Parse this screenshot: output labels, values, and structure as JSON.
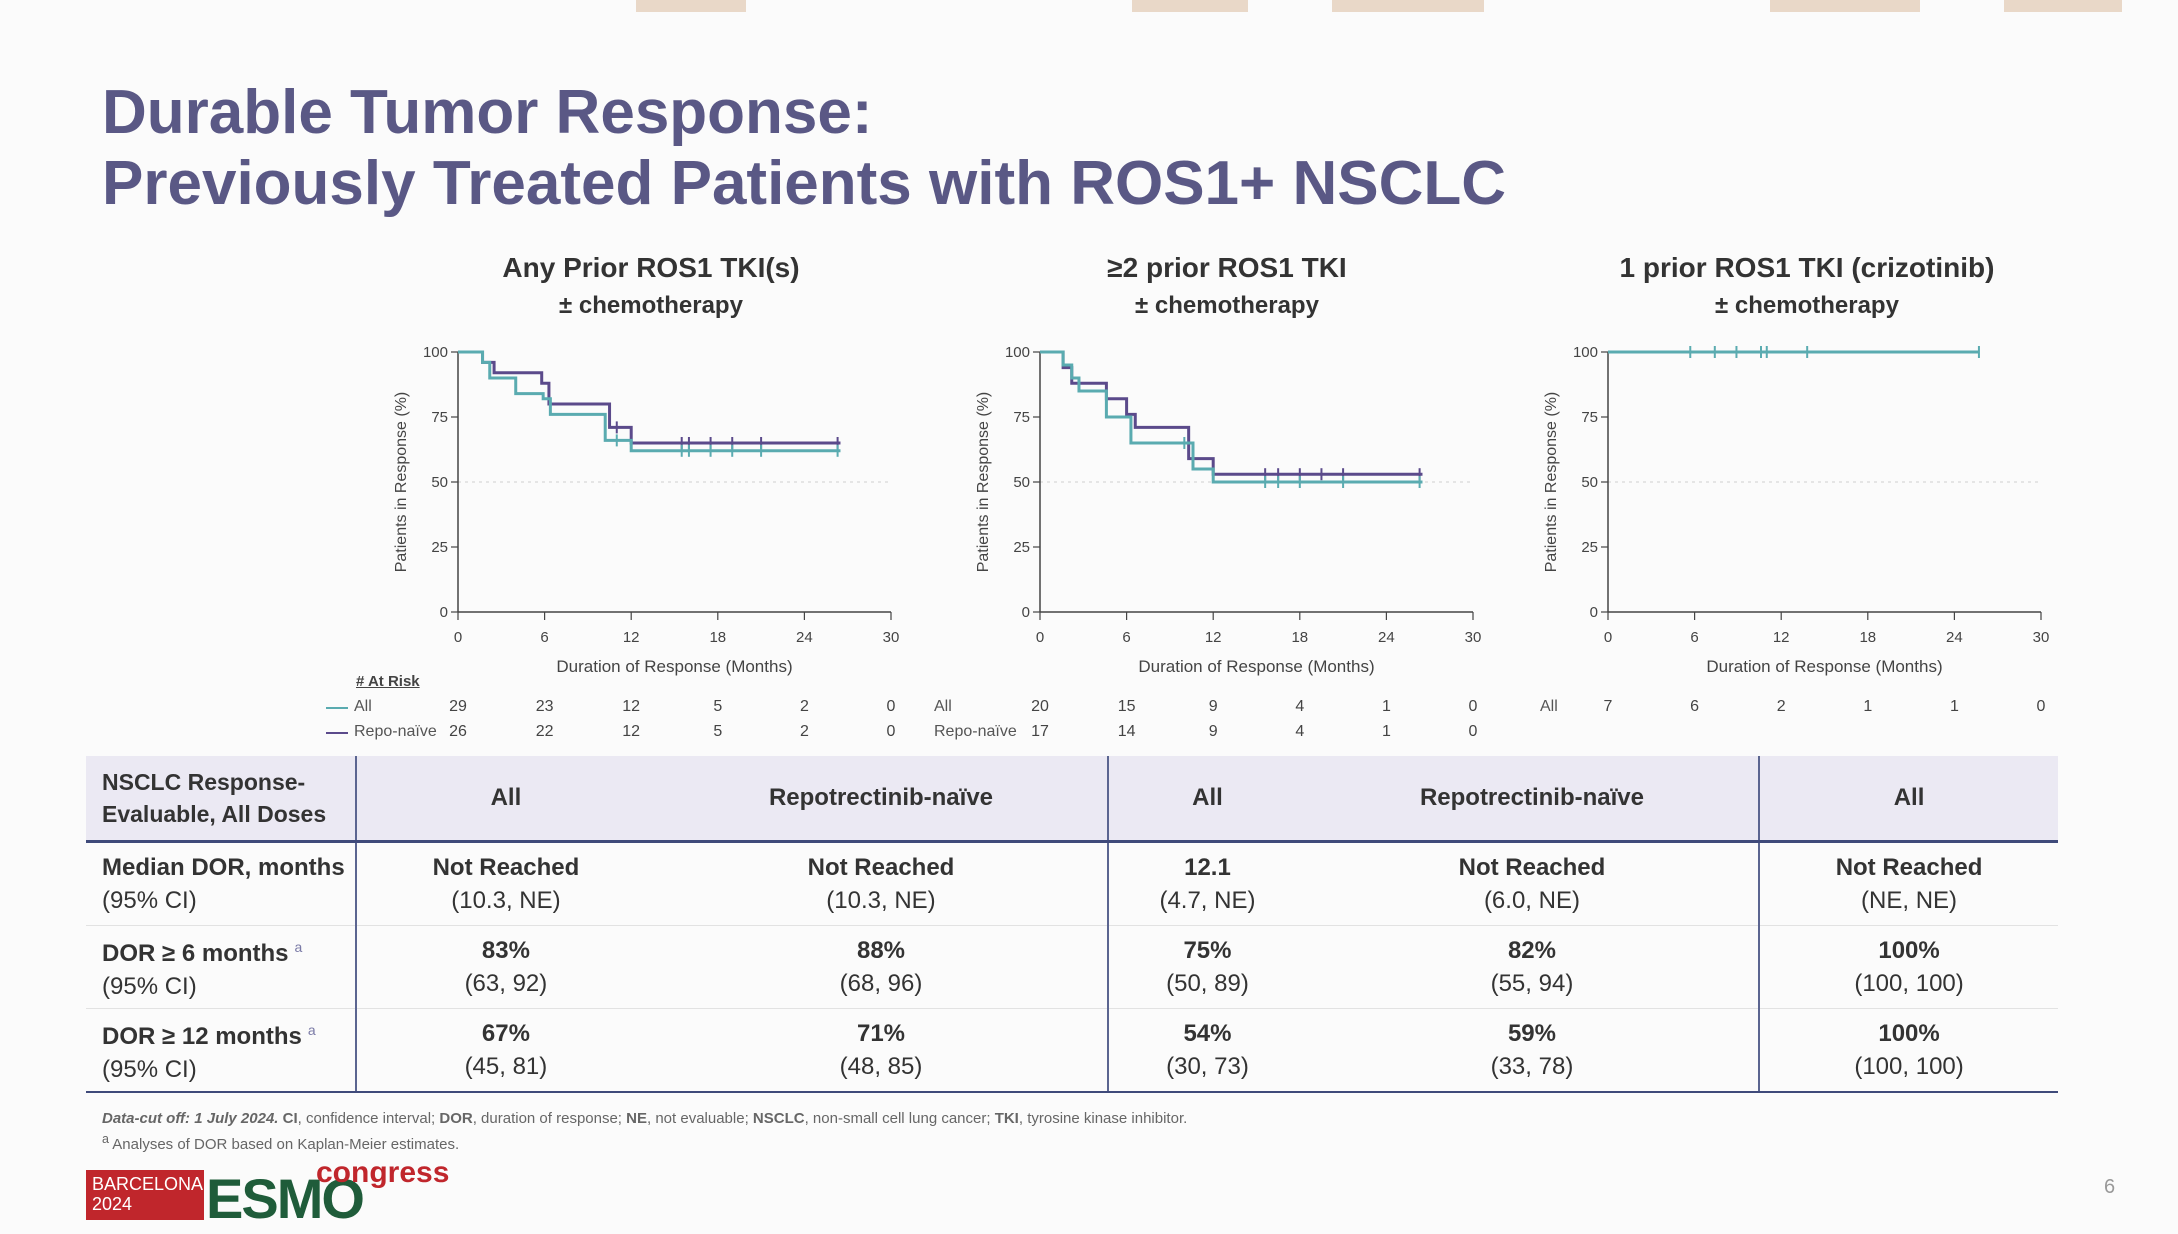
{
  "slide": {
    "title_line1": "Durable Tumor Response:",
    "title_line2": "Previously Treated Patients with ROS1+ NSCLC",
    "page_number": "6"
  },
  "chart_data": [
    {
      "type": "line",
      "title": "Any Prior ROS1 TKI(s)",
      "subtitle": "± chemotherapy",
      "xlabel": "Duration of  Response (Months)",
      "ylabel": "Patients in Response (%)",
      "xlim": [
        0,
        30
      ],
      "ylim": [
        0,
        100
      ],
      "xticks": [
        0,
        6,
        12,
        18,
        24,
        30
      ],
      "yticks": [
        0,
        25,
        50,
        75,
        100
      ],
      "reference_line_y": 50,
      "series": [
        {
          "name": "Repo-naïve",
          "color": "#5b4a8b",
          "x": [
            0,
            1.7,
            2.5,
            4.6,
            5.8,
            6.3,
            7.8,
            10.5,
            12.0,
            26.5
          ],
          "y": [
            100,
            96,
            92,
            92,
            88,
            80,
            80,
            71,
            65,
            65
          ],
          "censor_x": [
            11.0,
            15.5,
            16.0,
            17.5,
            19.0,
            21.0,
            26.3
          ]
        },
        {
          "name": "All",
          "color": "#5aabb0",
          "x": [
            0,
            1.7,
            2.2,
            4.0,
            5.9,
            6.4,
            7.8,
            10.2,
            12.0,
            26.5
          ],
          "y": [
            100,
            96,
            90,
            84,
            82,
            76,
            76,
            66,
            62,
            62
          ],
          "censor_x": [
            11.0,
            15.5,
            16.0,
            17.5,
            19.0,
            21.0,
            26.3
          ]
        }
      ],
      "at_risk": {
        "header": "# At Risk",
        "rows": [
          {
            "label": "All",
            "values": [
              29,
              23,
              12,
              5,
              2,
              0
            ]
          },
          {
            "label": "Repo-naïve",
            "values": [
              26,
              22,
              12,
              5,
              2,
              0
            ]
          }
        ]
      }
    },
    {
      "type": "line",
      "title": "≥2 prior ROS1 TKI",
      "subtitle": "± chemotherapy",
      "xlabel": "Duration of  Response (Months)",
      "ylabel": "Patients in Response (%)",
      "xlim": [
        0,
        30
      ],
      "ylim": [
        0,
        100
      ],
      "xticks": [
        0,
        6,
        12,
        18,
        24,
        30
      ],
      "yticks": [
        0,
        25,
        50,
        75,
        100
      ],
      "reference_line_y": 50,
      "series": [
        {
          "name": "Repo-naïve",
          "color": "#5b4a8b",
          "x": [
            0,
            1.6,
            2.2,
            2.6,
            4.6,
            6.0,
            6.6,
            10.3,
            12.0,
            26.5
          ],
          "y": [
            100,
            94,
            88,
            88,
            82,
            76,
            71,
            59,
            53,
            53
          ],
          "censor_x": [
            15.6,
            16.5,
            18.0,
            19.5,
            21.0,
            26.3
          ]
        },
        {
          "name": "All",
          "color": "#5aabb0",
          "x": [
            0,
            1.6,
            2.2,
            2.7,
            4.6,
            6.3,
            10.1,
            10.6,
            12.0,
            26.5
          ],
          "y": [
            100,
            95,
            90,
            85,
            75,
            65,
            65,
            55,
            50,
            50
          ],
          "censor_x": [
            10.0,
            15.6,
            16.5,
            18.0,
            21.0,
            26.3
          ]
        }
      ],
      "at_risk": {
        "header": "",
        "rows": [
          {
            "label": "All",
            "values": [
              20,
              15,
              9,
              4,
              1,
              0
            ]
          },
          {
            "label": "Repo-naïve",
            "values": [
              17,
              14,
              9,
              4,
              1,
              0
            ]
          }
        ]
      }
    },
    {
      "type": "line",
      "title": "1 prior ROS1 TKI (crizotinib)",
      "subtitle": "± chemotherapy",
      "xlabel": "Duration of  Response (Months)",
      "ylabel": "Patients in Response (%)",
      "xlim": [
        0,
        30
      ],
      "ylim": [
        0,
        100
      ],
      "xticks": [
        0,
        6,
        12,
        18,
        24,
        30
      ],
      "yticks": [
        0,
        25,
        50,
        75,
        100
      ],
      "reference_line_y": 50,
      "series": [
        {
          "name": "All",
          "color": "#5aabb0",
          "x": [
            0,
            25.7
          ],
          "y": [
            100,
            100
          ],
          "censor_x": [
            5.7,
            7.4,
            8.9,
            10.6,
            11.0,
            13.8,
            25.7
          ]
        }
      ],
      "at_risk": {
        "header": "",
        "rows": [
          {
            "label": "All",
            "values": [
              7,
              6,
              2,
              1,
              1,
              0
            ]
          }
        ]
      }
    }
  ],
  "table": {
    "header_rowhead": "NSCLC Response-Evaluable, All Doses",
    "columns": [
      "All",
      "Repotrectinib-naïve",
      "All",
      "Repotrectinib-naïve",
      "All"
    ],
    "rows": [
      {
        "label": "Median DOR, months",
        "sublabel": "(95% CI)",
        "cells": [
          {
            "main": "Not Reached",
            "ci": "(10.3, NE)"
          },
          {
            "main": "Not Reached",
            "ci": "(10.3, NE)"
          },
          {
            "main": "12.1",
            "ci": "(4.7, NE)"
          },
          {
            "main": "Not Reached",
            "ci": "(6.0, NE)"
          },
          {
            "main": "Not Reached",
            "ci": "(NE, NE)"
          }
        ]
      },
      {
        "label": "DOR ≥ 6 months",
        "sup": "a",
        "sublabel": "(95% CI)",
        "cells": [
          {
            "main": "83%",
            "ci": "(63, 92)"
          },
          {
            "main": "88%",
            "ci": "(68, 96)"
          },
          {
            "main": "75%",
            "ci": "(50, 89)"
          },
          {
            "main": "82%",
            "ci": "(55, 94)"
          },
          {
            "main": "100%",
            "ci": "(100, 100)"
          }
        ]
      },
      {
        "label": "DOR ≥ 12 months",
        "sup": "a",
        "sublabel": "(95% CI)",
        "cells": [
          {
            "main": "67%",
            "ci": "(45, 81)"
          },
          {
            "main": "71%",
            "ci": "(48, 85)"
          },
          {
            "main": "54%",
            "ci": "(30, 73)"
          },
          {
            "main": "59%",
            "ci": "(33, 78)"
          },
          {
            "main": "100%",
            "ci": "(100, 100)"
          }
        ]
      }
    ]
  },
  "footnotes": {
    "cutoff": "Data-cut off: 1 July 2024.",
    "abbr_html_parts": [
      {
        "b": "CI",
        "t": ", confidence interval; "
      },
      {
        "b": "DOR",
        "t": ", duration of response; "
      },
      {
        "b": "NE",
        "t": ", not evaluable; "
      },
      {
        "b": "NSCLC",
        "t": ", non-small cell lung cancer; "
      },
      {
        "b": "TKI",
        "t": ", tyrosine kinase inhibitor."
      }
    ],
    "note_a": "Analyses of DOR based on Kaplan-Meier estimates.",
    "note_a_marker": "a"
  },
  "logo": {
    "city": "BARCELONA",
    "year": "2024",
    "brand": "ESMO",
    "suffix": "congress"
  }
}
